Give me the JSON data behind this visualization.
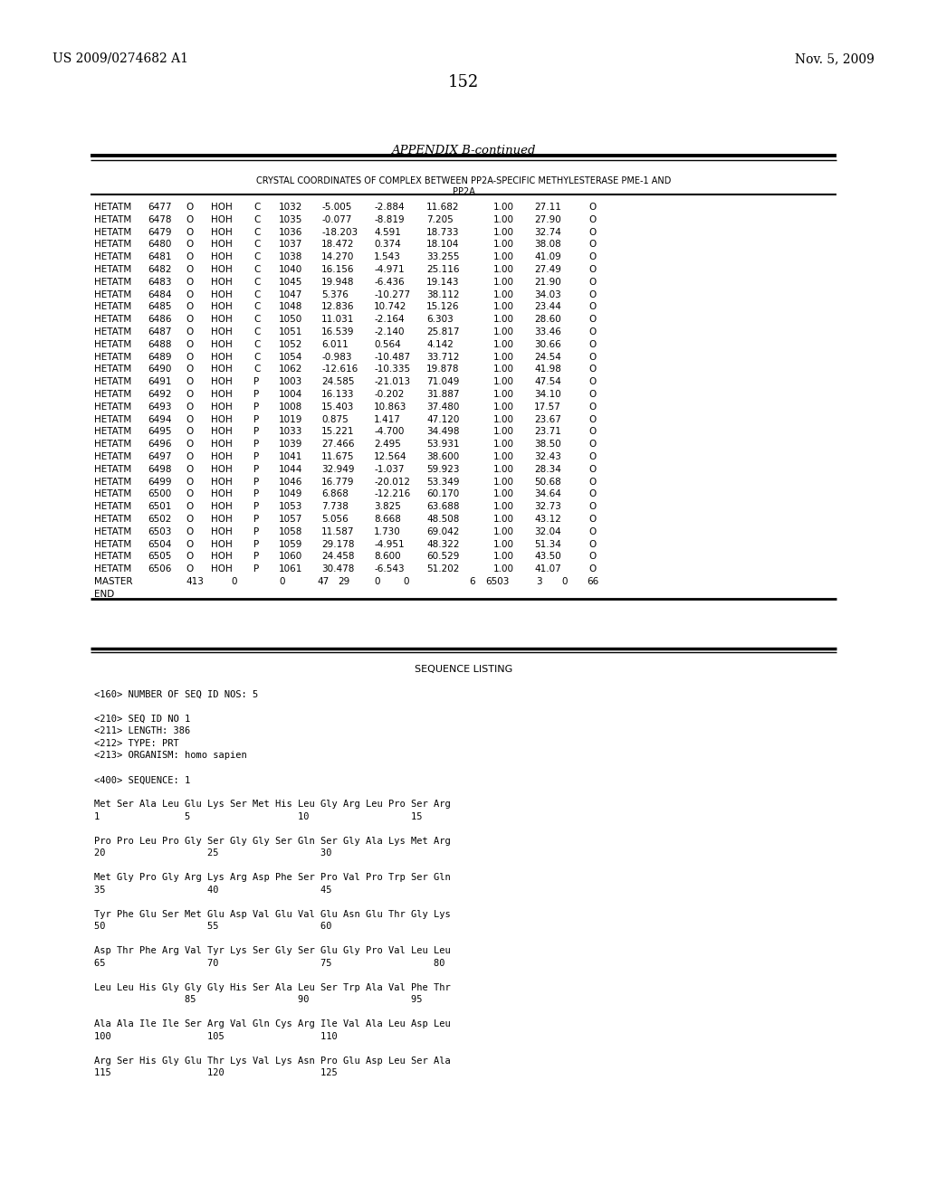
{
  "patent_number": "US 2009/0274682 A1",
  "date": "Nov. 5, 2009",
  "page_number": "152",
  "appendix_title": "APPENDIX B-continued",
  "table_header1": "CRYSTAL COORDINATES OF COMPLEX BETWEEN PP2A-SPECIFIC METHYLESTERASE PME-1 AND",
  "table_header2": "PP2A",
  "table_rows": [
    [
      "HETATM",
      "6477",
      "O",
      "HOH",
      "C",
      "1032",
      "-5.005",
      "-2.884",
      "11.682",
      "1.00",
      "27.11",
      "O"
    ],
    [
      "HETATM",
      "6478",
      "O",
      "HOH",
      "C",
      "1035",
      "-0.077",
      "-8.819",
      "7.205",
      "1.00",
      "27.90",
      "O"
    ],
    [
      "HETATM",
      "6479",
      "O",
      "HOH",
      "C",
      "1036",
      "-18.203",
      "4.591",
      "18.733",
      "1.00",
      "32.74",
      "O"
    ],
    [
      "HETATM",
      "6480",
      "O",
      "HOH",
      "C",
      "1037",
      "18.472",
      "0.374",
      "18.104",
      "1.00",
      "38.08",
      "O"
    ],
    [
      "HETATM",
      "6481",
      "O",
      "HOH",
      "C",
      "1038",
      "14.270",
      "1.543",
      "33.255",
      "1.00",
      "41.09",
      "O"
    ],
    [
      "HETATM",
      "6482",
      "O",
      "HOH",
      "C",
      "1040",
      "16.156",
      "-4.971",
      "25.116",
      "1.00",
      "27.49",
      "O"
    ],
    [
      "HETATM",
      "6483",
      "O",
      "HOH",
      "C",
      "1045",
      "19.948",
      "-6.436",
      "19.143",
      "1.00",
      "21.90",
      "O"
    ],
    [
      "HETATM",
      "6484",
      "O",
      "HOH",
      "C",
      "1047",
      "5.376",
      "-10.277",
      "38.112",
      "1.00",
      "34.03",
      "O"
    ],
    [
      "HETATM",
      "6485",
      "O",
      "HOH",
      "C",
      "1048",
      "12.836",
      "10.742",
      "15.126",
      "1.00",
      "23.44",
      "O"
    ],
    [
      "HETATM",
      "6486",
      "O",
      "HOH",
      "C",
      "1050",
      "11.031",
      "-2.164",
      "6.303",
      "1.00",
      "28.60",
      "O"
    ],
    [
      "HETATM",
      "6487",
      "O",
      "HOH",
      "C",
      "1051",
      "16.539",
      "-2.140",
      "25.817",
      "1.00",
      "33.46",
      "O"
    ],
    [
      "HETATM",
      "6488",
      "O",
      "HOH",
      "C",
      "1052",
      "6.011",
      "0.564",
      "4.142",
      "1.00",
      "30.66",
      "O"
    ],
    [
      "HETATM",
      "6489",
      "O",
      "HOH",
      "C",
      "1054",
      "-0.983",
      "-10.487",
      "33.712",
      "1.00",
      "24.54",
      "O"
    ],
    [
      "HETATM",
      "6490",
      "O",
      "HOH",
      "C",
      "1062",
      "-12.616",
      "-10.335",
      "19.878",
      "1.00",
      "41.98",
      "O"
    ],
    [
      "HETATM",
      "6491",
      "O",
      "HOH",
      "P",
      "1003",
      "24.585",
      "-21.013",
      "71.049",
      "1.00",
      "47.54",
      "O"
    ],
    [
      "HETATM",
      "6492",
      "O",
      "HOH",
      "P",
      "1004",
      "16.133",
      "-0.202",
      "31.887",
      "1.00",
      "34.10",
      "O"
    ],
    [
      "HETATM",
      "6493",
      "O",
      "HOH",
      "P",
      "1008",
      "15.403",
      "10.863",
      "37.480",
      "1.00",
      "17.57",
      "O"
    ],
    [
      "HETATM",
      "6494",
      "O",
      "HOH",
      "P",
      "1019",
      "0.875",
      "1.417",
      "47.120",
      "1.00",
      "23.67",
      "O"
    ],
    [
      "HETATM",
      "6495",
      "O",
      "HOH",
      "P",
      "1033",
      "15.221",
      "-4.700",
      "34.498",
      "1.00",
      "23.71",
      "O"
    ],
    [
      "HETATM",
      "6496",
      "O",
      "HOH",
      "P",
      "1039",
      "27.466",
      "2.495",
      "53.931",
      "1.00",
      "38.50",
      "O"
    ],
    [
      "HETATM",
      "6497",
      "O",
      "HOH",
      "P",
      "1041",
      "11.675",
      "12.564",
      "38.600",
      "1.00",
      "32.43",
      "O"
    ],
    [
      "HETATM",
      "6498",
      "O",
      "HOH",
      "P",
      "1044",
      "32.949",
      "-1.037",
      "59.923",
      "1.00",
      "28.34",
      "O"
    ],
    [
      "HETATM",
      "6499",
      "O",
      "HOH",
      "P",
      "1046",
      "16.779",
      "-20.012",
      "53.349",
      "1.00",
      "50.68",
      "O"
    ],
    [
      "HETATM",
      "6500",
      "O",
      "HOH",
      "P",
      "1049",
      "6.868",
      "-12.216",
      "60.170",
      "1.00",
      "34.64",
      "O"
    ],
    [
      "HETATM",
      "6501",
      "O",
      "HOH",
      "P",
      "1053",
      "7.738",
      "3.825",
      "63.688",
      "1.00",
      "32.73",
      "O"
    ],
    [
      "HETATM",
      "6502",
      "O",
      "HOH",
      "P",
      "1057",
      "5.056",
      "8.668",
      "48.508",
      "1.00",
      "43.12",
      "O"
    ],
    [
      "HETATM",
      "6503",
      "O",
      "HOH",
      "P",
      "1058",
      "11.587",
      "1.730",
      "69.042",
      "1.00",
      "32.04",
      "O"
    ],
    [
      "HETATM",
      "6504",
      "O",
      "HOH",
      "P",
      "1059",
      "29.178",
      "-4.951",
      "48.322",
      "1.00",
      "51.34",
      "O"
    ],
    [
      "HETATM",
      "6505",
      "O",
      "HOH",
      "P",
      "1060",
      "24.458",
      "8.600",
      "60.529",
      "1.00",
      "43.50",
      "O"
    ],
    [
      "HETATM",
      "6506",
      "O",
      "HOH",
      "P",
      "1061",
      "30.478",
      "-6.543",
      "51.202",
      "1.00",
      "41.07",
      "O"
    ]
  ],
  "master_line": "MASTER          413        0           0  47  29   0   0       6  6503    3   0   66",
  "end_line": "END",
  "seq_title": "SEQUENCE LISTING",
  "seq_lines": [
    "<160> NUMBER OF SEQ ID NOS: 5",
    "",
    "<210> SEQ ID NO 1",
    "<211> LENGTH: 386",
    "<212> TYPE: PRT",
    "<213> ORGANISM: homo sapien",
    "",
    "<400> SEQUENCE: 1",
    "",
    "Met Ser Ala Leu Glu Lys Ser Met His Leu Gly Arg Leu Pro Ser Arg",
    "1               5                   10                  15",
    "",
    "Pro Pro Leu Pro Gly Ser Gly Gly Ser Gln Ser Gly Ala Lys Met Arg",
    "20                  25                  30",
    "",
    "Met Gly Pro Gly Arg Lys Arg Asp Phe Ser Pro Val Pro Trp Ser Gln",
    "35                  40                  45",
    "",
    "Tyr Phe Glu Ser Met Glu Asp Val Glu Val Glu Asn Glu Thr Gly Lys",
    "50                  55                  60",
    "",
    "Asp Thr Phe Arg Val Tyr Lys Ser Gly Ser Glu Gly Pro Val Leu Leu",
    "65                  70                  75                  80",
    "",
    "Leu Leu His Gly Gly Gly His Ser Ala Leu Ser Trp Ala Val Phe Thr",
    "                85                  90                  95",
    "",
    "Ala Ala Ile Ile Ser Arg Val Gln Cys Arg Ile Val Ala Leu Asp Leu",
    "100                 105                 110",
    "",
    "Arg Ser His Gly Glu Thr Lys Val Lys Asn Pro Glu Asp Leu Ser Ala",
    "115                 120                 125"
  ],
  "bg_color": "#ffffff",
  "text_color": "#000000"
}
